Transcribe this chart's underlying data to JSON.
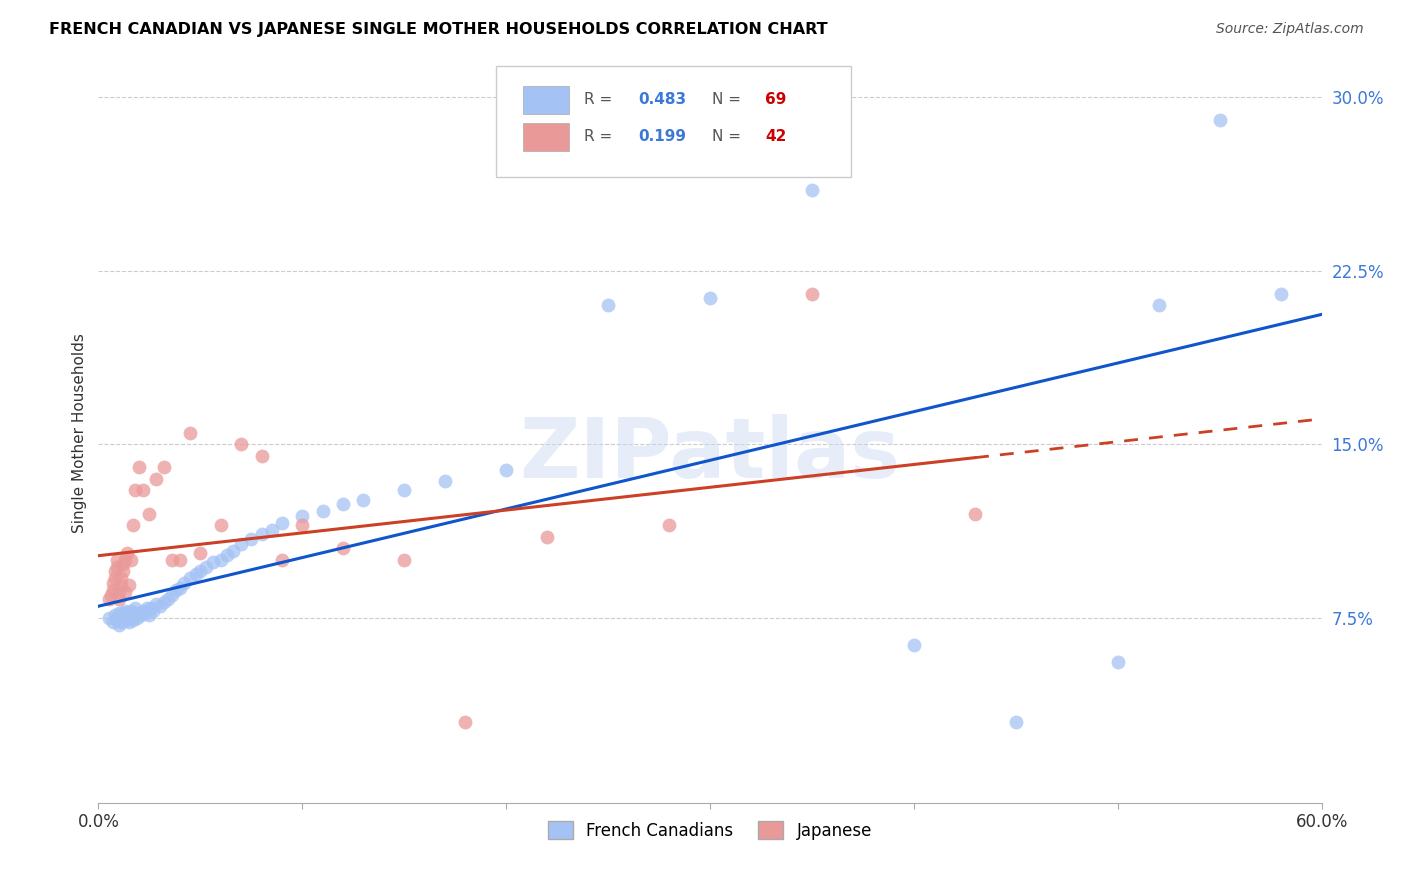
{
  "title": "FRENCH CANADIAN VS JAPANESE SINGLE MOTHER HOUSEHOLDS CORRELATION CHART",
  "source": "Source: ZipAtlas.com",
  "ylabel": "Single Mother Households",
  "xlim": [
    0.0,
    0.6
  ],
  "ylim": [
    -0.005,
    0.315
  ],
  "blue_color": "#a4c2f4",
  "pink_color": "#ea9999",
  "blue_line_color": "#1155cc",
  "pink_line_color": "#cc4125",
  "R_blue": 0.483,
  "N_blue": 69,
  "R_pink": 0.199,
  "N_pink": 42,
  "watermark_text": "ZIPatlas",
  "blue_scatter_x": [
    0.005,
    0.007,
    0.008,
    0.009,
    0.01,
    0.01,
    0.01,
    0.011,
    0.011,
    0.012,
    0.012,
    0.013,
    0.013,
    0.014,
    0.014,
    0.015,
    0.015,
    0.016,
    0.016,
    0.017,
    0.017,
    0.018,
    0.018,
    0.019,
    0.02,
    0.021,
    0.022,
    0.023,
    0.024,
    0.025,
    0.026,
    0.027,
    0.028,
    0.03,
    0.032,
    0.034,
    0.036,
    0.038,
    0.04,
    0.042,
    0.045,
    0.048,
    0.05,
    0.053,
    0.056,
    0.06,
    0.063,
    0.066,
    0.07,
    0.075,
    0.08,
    0.085,
    0.09,
    0.1,
    0.11,
    0.12,
    0.13,
    0.15,
    0.17,
    0.2,
    0.25,
    0.3,
    0.35,
    0.4,
    0.45,
    0.5,
    0.52,
    0.55,
    0.58
  ],
  "blue_scatter_y": [
    0.075,
    0.073,
    0.076,
    0.074,
    0.072,
    0.075,
    0.077,
    0.073,
    0.076,
    0.074,
    0.077,
    0.075,
    0.078,
    0.074,
    0.077,
    0.073,
    0.076,
    0.075,
    0.078,
    0.074,
    0.077,
    0.076,
    0.079,
    0.075,
    0.077,
    0.076,
    0.078,
    0.077,
    0.079,
    0.076,
    0.079,
    0.078,
    0.081,
    0.08,
    0.082,
    0.083,
    0.085,
    0.087,
    0.088,
    0.09,
    0.092,
    0.094,
    0.095,
    0.097,
    0.099,
    0.1,
    0.102,
    0.104,
    0.107,
    0.109,
    0.111,
    0.113,
    0.116,
    0.119,
    0.121,
    0.124,
    0.126,
    0.13,
    0.134,
    0.139,
    0.21,
    0.213,
    0.26,
    0.063,
    0.03,
    0.056,
    0.21,
    0.29,
    0.215
  ],
  "pink_scatter_x": [
    0.005,
    0.006,
    0.007,
    0.007,
    0.008,
    0.008,
    0.009,
    0.009,
    0.01,
    0.01,
    0.011,
    0.011,
    0.012,
    0.012,
    0.013,
    0.013,
    0.014,
    0.015,
    0.016,
    0.017,
    0.018,
    0.02,
    0.022,
    0.025,
    0.028,
    0.032,
    0.036,
    0.04,
    0.045,
    0.05,
    0.06,
    0.07,
    0.08,
    0.09,
    0.1,
    0.12,
    0.15,
    0.18,
    0.22,
    0.28,
    0.35,
    0.43
  ],
  "pink_scatter_y": [
    0.083,
    0.085,
    0.087,
    0.09,
    0.092,
    0.095,
    0.097,
    0.1,
    0.083,
    0.086,
    0.089,
    0.092,
    0.095,
    0.098,
    0.086,
    0.1,
    0.103,
    0.089,
    0.1,
    0.115,
    0.13,
    0.14,
    0.13,
    0.12,
    0.135,
    0.14,
    0.1,
    0.1,
    0.155,
    0.103,
    0.115,
    0.15,
    0.145,
    0.1,
    0.115,
    0.105,
    0.1,
    0.03,
    0.11,
    0.115,
    0.215,
    0.12
  ]
}
